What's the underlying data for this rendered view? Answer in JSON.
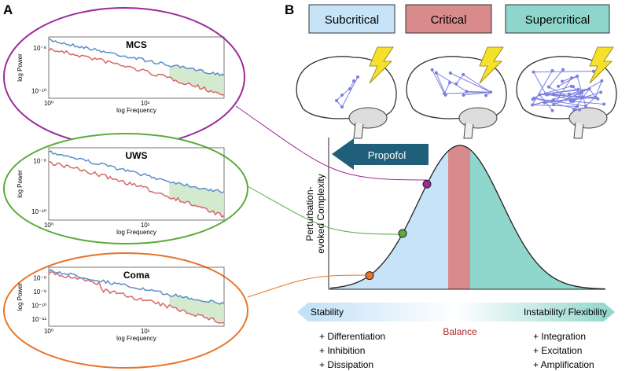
{
  "panels": {
    "a": "A",
    "b": "B"
  },
  "spectra": [
    {
      "title": "MCS",
      "ylabel": "log Power",
      "xlabel": "log Frequency",
      "yticks": [
        "10⁻⁸",
        "10⁻¹⁰"
      ],
      "xticks": [
        "10⁰",
        "10¹"
      ]
    },
    {
      "title": "UWS",
      "ylabel": "log Power",
      "xlabel": "log Frequency",
      "yticks": [
        "10⁻⁸",
        "10⁻¹⁰"
      ],
      "xticks": [
        "10⁰",
        "10¹"
      ]
    },
    {
      "title": "Coma",
      "ylabel": "log Power",
      "xlabel": "log Frequency",
      "yticks": [
        "10⁻⁸",
        "10⁻⁹",
        "10⁻¹⁰",
        "10⁻¹¹"
      ],
      "xticks": [
        "10⁰",
        "10¹"
      ]
    }
  ],
  "states": [
    "Subcritical",
    "Critical",
    "Supercritical"
  ],
  "drug": "Propofol",
  "yaxis": [
    "Perturbation-",
    "evoked Complexity"
  ],
  "spectrum_axis": {
    "left": "Stability",
    "center": "Balance",
    "right": "Instability/ Flexibility"
  },
  "left_list": [
    "+ Differentiation",
    "+ Inhibition",
    "+ Dissipation"
  ],
  "right_list": [
    "+ Integration",
    "+ Excitation",
    "+ Amplification"
  ]
}
